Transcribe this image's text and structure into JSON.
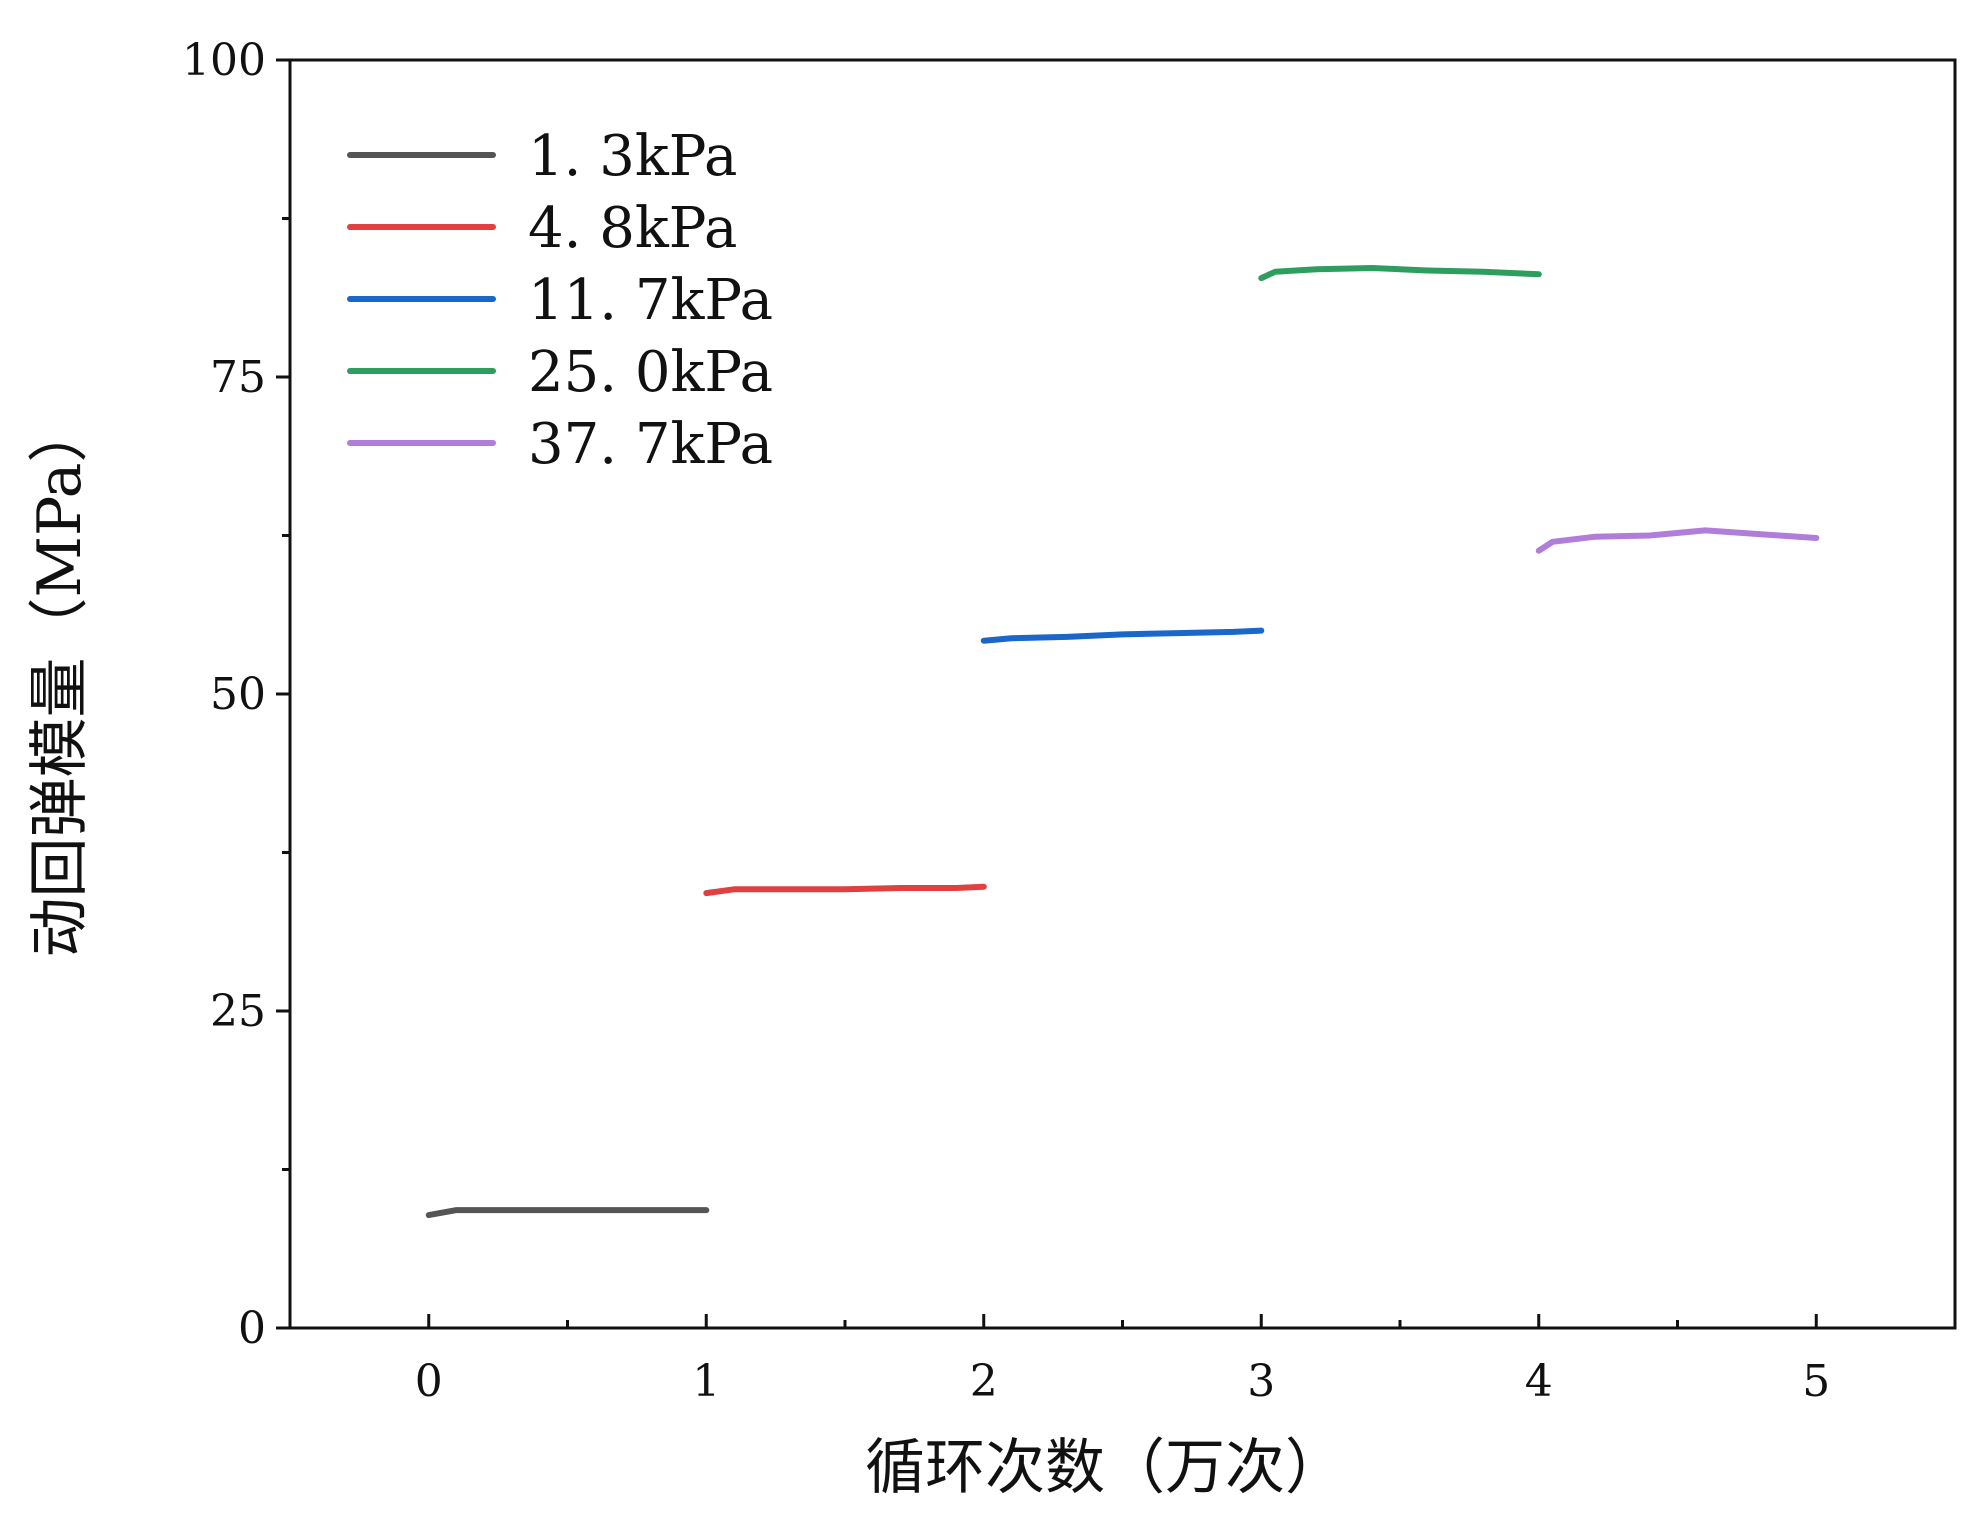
{
  "chart_data": {
    "type": "line",
    "xlabel": "循环次数（万次）",
    "ylabel": "动回弹模量（MPa）",
    "xlim": [
      -0.5,
      5.5
    ],
    "ylim": [
      0,
      100
    ],
    "x_ticks": [
      "0",
      "1",
      "2",
      "3",
      "4",
      "5"
    ],
    "y_ticks": [
      "0",
      "25",
      "50",
      "75",
      "100"
    ],
    "grid": false,
    "legend_position": "top-left",
    "series": [
      {
        "name": "1. 3kPa",
        "color": "#555555",
        "x": [
          0.0,
          0.1,
          0.3,
          0.5,
          0.7,
          0.9,
          1.0
        ],
        "y": [
          8.9,
          9.3,
          9.3,
          9.3,
          9.3,
          9.3,
          9.3
        ]
      },
      {
        "name": "4. 8kPa",
        "color": "#e04040",
        "x": [
          1.0,
          1.1,
          1.3,
          1.5,
          1.7,
          1.9,
          2.0
        ],
        "y": [
          34.3,
          34.6,
          34.6,
          34.6,
          34.7,
          34.7,
          34.8
        ]
      },
      {
        "name": "11. 7kPa",
        "color": "#1a66c9",
        "x": [
          2.0,
          2.1,
          2.3,
          2.5,
          2.7,
          2.9,
          3.0
        ],
        "y": [
          54.2,
          54.4,
          54.5,
          54.7,
          54.8,
          54.9,
          55.0
        ]
      },
      {
        "name": "25. 0kPa",
        "color": "#2e9e5e",
        "x": [
          3.0,
          3.05,
          3.2,
          3.4,
          3.6,
          3.8,
          4.0
        ],
        "y": [
          82.8,
          83.3,
          83.5,
          83.6,
          83.4,
          83.3,
          83.1
        ]
      },
      {
        "name": "37. 7kPa",
        "color": "#b07ed8",
        "x": [
          4.0,
          4.05,
          4.2,
          4.4,
          4.6,
          4.8,
          5.0
        ],
        "y": [
          61.3,
          62.0,
          62.4,
          62.5,
          62.9,
          62.6,
          62.3
        ]
      }
    ]
  }
}
